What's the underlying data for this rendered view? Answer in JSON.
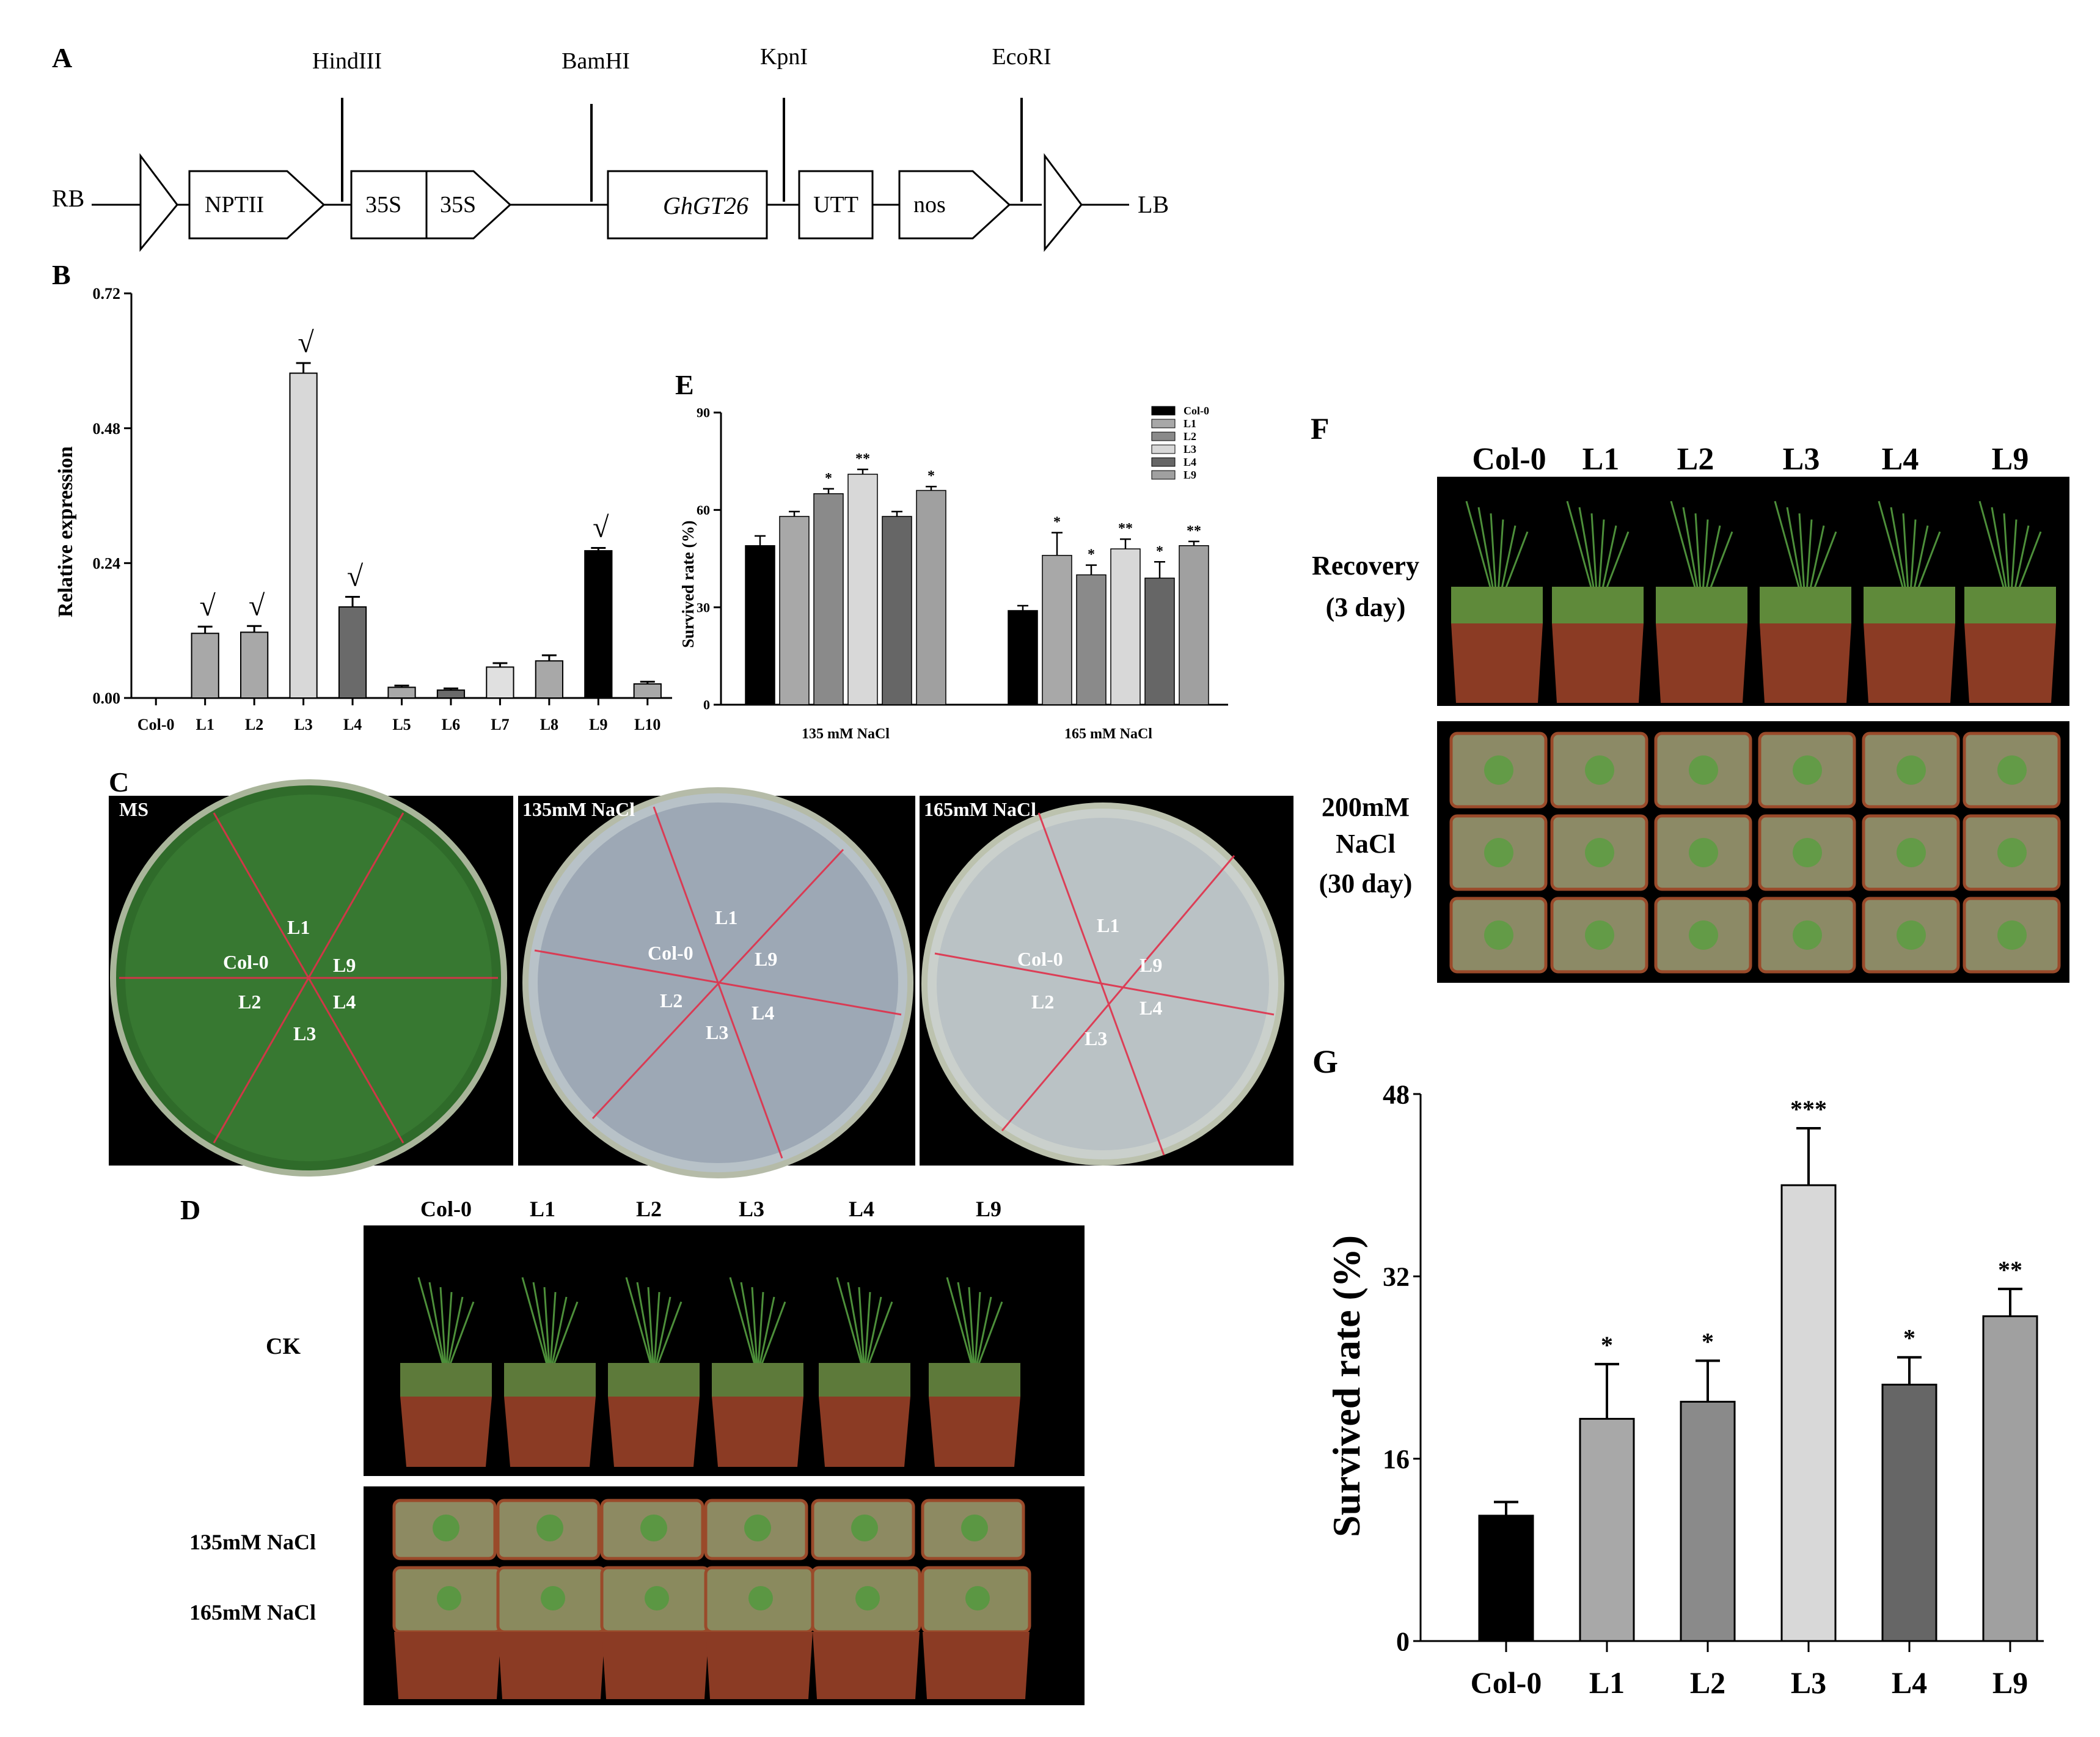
{
  "panels": {
    "A": {
      "label": "A",
      "sites": [
        "HindIII",
        "BamHI",
        "KpnI",
        "EcoRI"
      ],
      "elements": {
        "rb": "RB",
        "lb": "LB",
        "nptii": "NPTII",
        "p35s_1": "35S",
        "p35s_2": "35S",
        "gene": "GhGT26",
        "utt": "UTT",
        "nos": "nos"
      }
    },
    "B": {
      "label": "B"
    },
    "C": {
      "label": "C",
      "plates": [
        "MS",
        "135mM NaCl",
        "165mM NaCl"
      ],
      "plate_lines": [
        "L1",
        "Col-0",
        "L9",
        "L2",
        "L4",
        "L3"
      ]
    },
    "D": {
      "label": "D",
      "cols": [
        "Col-0",
        "L1",
        "L2",
        "L3",
        "L4",
        "L9"
      ],
      "rows": [
        "CK",
        "135mM NaCl",
        "165mM NaCl"
      ]
    },
    "E": {
      "label": "E"
    },
    "F": {
      "label": "F",
      "cols": [
        "Col-0",
        "L1",
        "L2",
        "L3",
        "L4",
        "L9"
      ],
      "recovery": [
        "Recovery",
        "(3 day)"
      ],
      "salt": [
        "200mM",
        "NaCl",
        "(30 day)"
      ]
    },
    "G": {
      "label": "G"
    }
  },
  "chart_data": [
    {
      "panel": "B",
      "type": "bar",
      "categories": [
        "Col-0",
        "L1",
        "L2",
        "L3",
        "L4",
        "L5",
        "L6",
        "L7",
        "L8",
        "L9",
        "L10"
      ],
      "values": [
        0.0,
        0.115,
        0.117,
        0.578,
        0.162,
        0.019,
        0.014,
        0.055,
        0.066,
        0.262,
        0.025
      ],
      "errors": [
        0.0,
        0.012,
        0.011,
        0.018,
        0.018,
        0.003,
        0.003,
        0.007,
        0.01,
        0.005,
        0.004
      ],
      "colors": [
        "#ffffff",
        "#a8a8a8",
        "#a8a8a8",
        "#d8d8d8",
        "#6a6a6a",
        "#a8a8a8",
        "#6a6a6a",
        "#e0e0e0",
        "#a8a8a8",
        "#000000",
        "#a8a8a8"
      ],
      "marks": [
        "",
        "√",
        "√",
        "√",
        "√",
        "",
        "",
        "",
        "",
        "√",
        ""
      ],
      "ylabel": "Relative expression",
      "yticks": [
        "0.00",
        "0.24",
        "0.48",
        "0.72"
      ],
      "ylim": [
        0,
        0.72
      ]
    },
    {
      "panel": "E",
      "type": "bar",
      "groups": [
        "135 mM NaCl",
        "165 mM NaCl"
      ],
      "series": [
        {
          "name": "Col-0",
          "color": "#000000",
          "values": [
            49,
            29
          ],
          "errors": [
            3,
            1.5
          ],
          "sig": [
            "",
            ""
          ]
        },
        {
          "name": "L1",
          "color": "#a8a8a8",
          "values": [
            58,
            46
          ],
          "errors": [
            1.5,
            7
          ],
          "sig": [
            "",
            "*"
          ]
        },
        {
          "name": "L2",
          "color": "#8a8a8a",
          "values": [
            65,
            40
          ],
          "errors": [
            1.5,
            3
          ],
          "sig": [
            "*",
            "*"
          ]
        },
        {
          "name": "L3",
          "color": "#d8d8d8",
          "values": [
            71,
            48
          ],
          "errors": [
            1.5,
            3
          ],
          "sig": [
            "**",
            "**"
          ]
        },
        {
          "name": "L4",
          "color": "#666666",
          "values": [
            58,
            39
          ],
          "errors": [
            1.5,
            5
          ],
          "sig": [
            "",
            "*"
          ]
        },
        {
          "name": "L9",
          "color": "#a0a0a0",
          "values": [
            66,
            49
          ],
          "errors": [
            1.2,
            1.3
          ],
          "sig": [
            "*",
            "**"
          ]
        }
      ],
      "ylabel": "Survived rate (%)",
      "yticks": [
        "0",
        "30",
        "60",
        "90"
      ],
      "ylim": [
        0,
        90
      ],
      "legend": "top-right"
    },
    {
      "panel": "G",
      "type": "bar",
      "categories": [
        "Col-0",
        "L1",
        "L2",
        "L3",
        "L4",
        "L9"
      ],
      "values": [
        11,
        19.5,
        21,
        40,
        22.5,
        28.5
      ],
      "errors": [
        1.2,
        4.8,
        3.6,
        5,
        2.4,
        2.4
      ],
      "colors": [
        "#000000",
        "#a8a8a8",
        "#8a8a8a",
        "#d8d8d8",
        "#666666",
        "#a0a0a0"
      ],
      "sig": [
        "",
        "*",
        "*",
        "***",
        "*",
        "**"
      ],
      "ylabel": "Survived rate (%)",
      "yticks": [
        "0",
        "16",
        "32",
        "48"
      ],
      "ylim": [
        0,
        48
      ]
    }
  ]
}
